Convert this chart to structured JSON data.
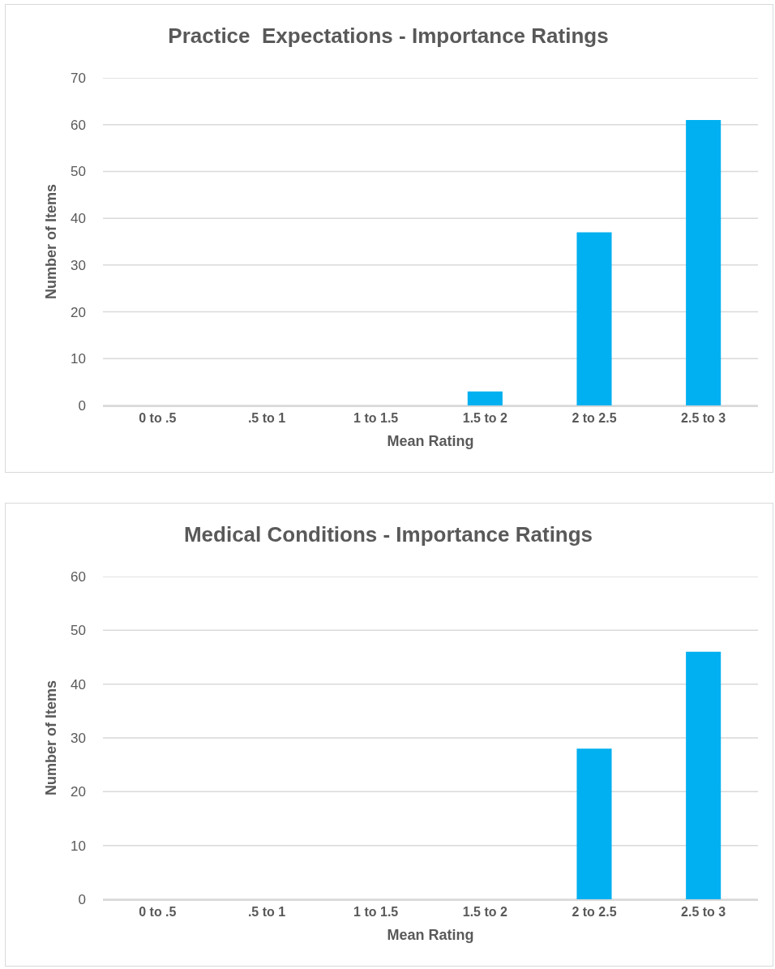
{
  "chart_data": [
    {
      "type": "bar",
      "title": "Practice  Expectations - Importance Ratings",
      "xlabel": "Mean Rating",
      "ylabel": "Number of Items",
      "categories": [
        "0 to .5",
        ".5 to 1",
        "1 to 1.5",
        "1.5 to 2",
        "2 to 2.5",
        "2.5 to 3"
      ],
      "values": [
        0,
        0,
        0,
        3,
        37,
        61
      ],
      "color": "#00b0f0",
      "ylim": [
        0,
        70
      ],
      "yticks": [
        0,
        10,
        20,
        30,
        40,
        50,
        60,
        70
      ],
      "grid": "y"
    },
    {
      "type": "bar",
      "title": "Medical Conditions - Importance Ratings",
      "xlabel": "Mean Rating",
      "ylabel": "Number of Items",
      "categories": [
        "0 to .5",
        ".5 to 1",
        "1 to 1.5",
        "1.5 to 2",
        "2 to 2.5",
        "2.5 to 3"
      ],
      "values": [
        0,
        0,
        0,
        0,
        28,
        46
      ],
      "color": "#00b0f0",
      "ylim": [
        0,
        60
      ],
      "yticks": [
        0,
        10,
        20,
        30,
        40,
        50,
        60
      ],
      "grid": "y"
    }
  ]
}
